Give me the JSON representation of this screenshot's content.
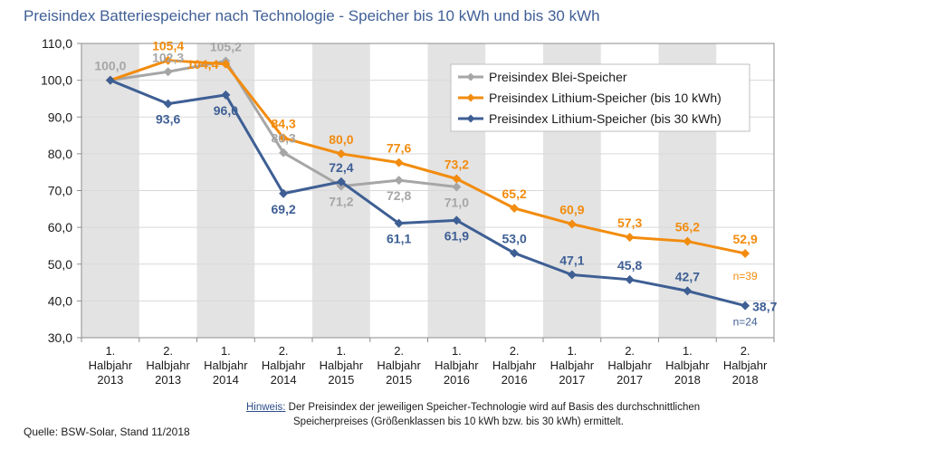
{
  "title": "Preisindex Batteriespeicher nach Technologie - Speicher bis 10 kWh und bis 30 kWh",
  "note": {
    "label": "Hinweis:",
    "line1": "Der Preisindex der jeweiligen Speicher-Technologie wird auf Basis des  durchschnittlichen",
    "line2": "Speicherpreises (Größenklassen bis 10 kWh bzw. bis 30 kWh) ermittelt."
  },
  "source": "Quelle: BSW-Solar, Stand 11/2018",
  "colors": {
    "blei": "#a6a6a6",
    "li10": "#f28c0f",
    "li30": "#3e5f94",
    "axis": "#8c8c8c",
    "band": "#e3e3e3",
    "grid": "#d9d9d9",
    "text": "#1b1b1b"
  },
  "chart_data": {
    "type": "line",
    "title": "Preisindex Batteriespeicher nach Technologie - Speicher bis 10 kWh und bis 30 kWh",
    "categories": [
      [
        "1.",
        "Halbjahr",
        "2013"
      ],
      [
        "2.",
        "Halbjahr",
        "2013"
      ],
      [
        "1.",
        "Halbjahr",
        "2014"
      ],
      [
        "2.",
        "Halbjahr",
        "2014"
      ],
      [
        "1.",
        "Halbjahr",
        "2015"
      ],
      [
        "2.",
        "Halbjahr",
        "2015"
      ],
      [
        "1.",
        "Halbjahr",
        "2016"
      ],
      [
        "2.",
        "Halbjahr",
        "2016"
      ],
      [
        "1.",
        "Halbjahr",
        "2017"
      ],
      [
        "2.",
        "Halbjahr",
        "2017"
      ],
      [
        "1.",
        "Halbjahr",
        "2018"
      ],
      [
        "2.",
        "Halbjahr",
        "2018"
      ]
    ],
    "ylim": [
      30,
      110
    ],
    "yticks": [
      "30,0",
      "40,0",
      "50,0",
      "60,0",
      "70,0",
      "80,0",
      "90,0",
      "100,0",
      "110,0"
    ],
    "grid": true,
    "legend_position": "top-right",
    "series": [
      {
        "key": "blei",
        "name": "Preisindex Blei-Speicher",
        "values": [
          100.0,
          102.3,
          105.2,
          80.3,
          71.2,
          72.8,
          71.0,
          null,
          null,
          null,
          null,
          null
        ],
        "labels": [
          "100,0",
          "102,3",
          "105,2",
          "80,3",
          "71,2",
          "72,8",
          "71,0",
          null,
          null,
          null,
          null,
          null
        ],
        "label_pos": [
          "above",
          "above",
          "above",
          "above",
          "below",
          "below",
          "below",
          null,
          null,
          null,
          null,
          null
        ]
      },
      {
        "key": "li10",
        "name": "Preisindex Lithium-Speicher (bis 10 kWh)",
        "values": [
          100.0,
          105.4,
          104.4,
          84.3,
          80.0,
          77.6,
          73.2,
          65.2,
          60.9,
          57.3,
          56.2,
          52.9
        ],
        "labels": [
          null,
          "105,4",
          "104,4",
          "84,3",
          "80,0",
          "77,6",
          "73,2",
          "65,2",
          "60,9",
          "57,3",
          "56,2",
          "52,9"
        ],
        "label_pos": [
          null,
          "above",
          "left",
          "above",
          "above",
          "above",
          "above",
          "above",
          "above",
          "above",
          "above",
          "above"
        ],
        "n_label": "n=39"
      },
      {
        "key": "li30",
        "name": "Preisindex Lithium-Speicher (bis 30 kWh)",
        "values": [
          100.0,
          93.6,
          96.0,
          69.2,
          72.4,
          61.1,
          61.9,
          53.0,
          47.1,
          45.8,
          42.7,
          38.7
        ],
        "labels": [
          null,
          "93,6",
          "96,0",
          "69,2",
          "72,4",
          "61,1",
          "61,9",
          "53,0",
          "47,1",
          "45,8",
          "42,7",
          "38,7"
        ],
        "label_pos": [
          null,
          "below",
          "below",
          "below",
          "above",
          "below",
          "below",
          "above",
          "above",
          "above",
          "above",
          "right"
        ],
        "n_label": "n=24"
      }
    ]
  }
}
